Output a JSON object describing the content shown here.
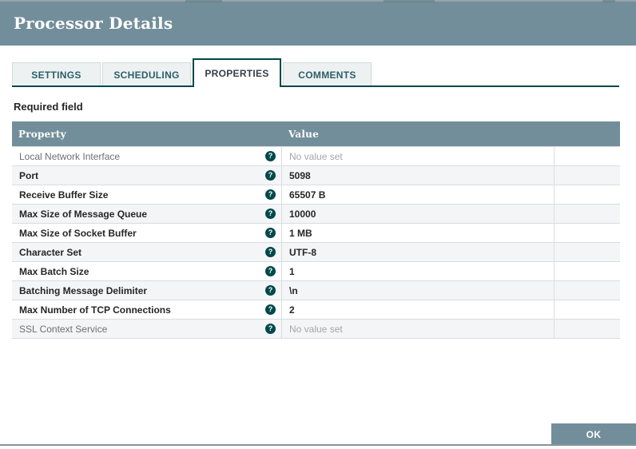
{
  "window": {
    "title": "Processor Details",
    "required_field_label": "Required field",
    "ok_label": "OK"
  },
  "tabs": [
    {
      "label": "SETTINGS",
      "active": false
    },
    {
      "label": "SCHEDULING",
      "active": false
    },
    {
      "label": "PROPERTIES",
      "active": true
    },
    {
      "label": "COMMENTS",
      "active": false
    }
  ],
  "properties_table": {
    "columns": [
      "Property",
      "Value"
    ],
    "help_glyph": "?",
    "unset_text": "No value set",
    "rows": [
      {
        "property": "Local Network Interface",
        "value": "No value set",
        "required": false,
        "value_set": false
      },
      {
        "property": "Port",
        "value": "5098",
        "required": true,
        "value_set": true
      },
      {
        "property": "Receive Buffer Size",
        "value": "65507 B",
        "required": true,
        "value_set": true
      },
      {
        "property": "Max Size of Message Queue",
        "value": "10000",
        "required": true,
        "value_set": true
      },
      {
        "property": "Max Size of Socket Buffer",
        "value": "1 MB",
        "required": true,
        "value_set": true
      },
      {
        "property": "Character Set",
        "value": "UTF-8",
        "required": true,
        "value_set": true
      },
      {
        "property": "Max Batch Size",
        "value": "1",
        "required": true,
        "value_set": true
      },
      {
        "property": "Batching Message Delimiter",
        "value": "\\n",
        "required": true,
        "value_set": true
      },
      {
        "property": "Max Number of TCP Connections",
        "value": "2",
        "required": true,
        "value_set": true
      },
      {
        "property": "SSL Context Service",
        "value": "No value set",
        "required": false,
        "value_set": false
      }
    ]
  },
  "colors": {
    "header_bg": "#738e9b",
    "accent_teal": "#004849",
    "row_stripe": "#f4f5f7",
    "row_border": "#d8dde1",
    "text_dark": "#262626",
    "text_optional": "#6f6f6f",
    "text_unset": "#a6a6a6",
    "tab_inactive_bg": "#eef1f2",
    "button_bg": "#738e9b",
    "button_text": "#ffffff"
  }
}
